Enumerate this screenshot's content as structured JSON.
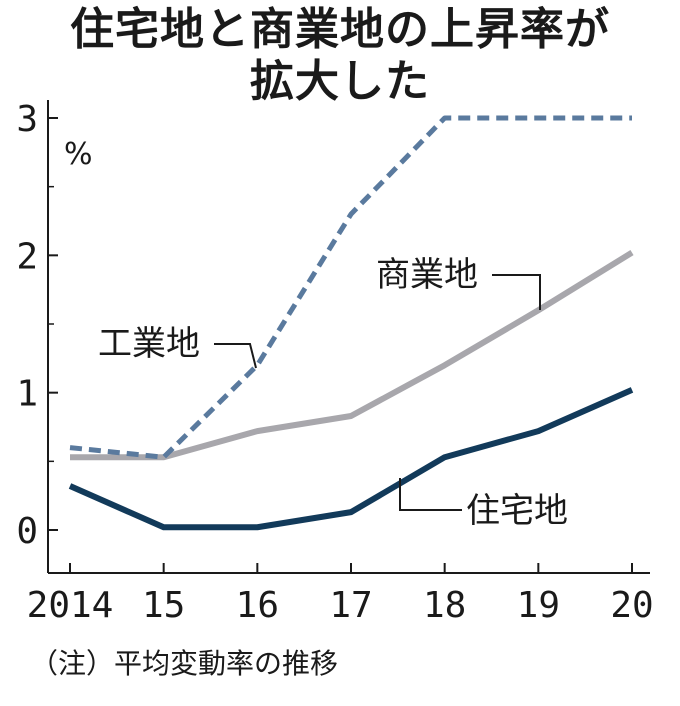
{
  "chart_data": {
    "type": "line",
    "title_lines": [
      "住宅地と商業地の上昇率が",
      "拡大した"
    ],
    "ylabel": "%",
    "x": [
      "2014",
      "15",
      "16",
      "17",
      "18",
      "19",
      "20"
    ],
    "ylim": [
      -0.3,
      3.15
    ],
    "y_ticks": [
      "0",
      "1",
      "2",
      "3"
    ],
    "series": [
      {
        "name": "工業地",
        "style": "dashed",
        "color": "#5a7a9e",
        "values": [
          0.6,
          0.53,
          1.2,
          2.3,
          3.0,
          3.0,
          3.0
        ]
      },
      {
        "name": "商業地",
        "style": "solid",
        "color": "#a8a7ac",
        "values": [
          0.53,
          0.53,
          0.72,
          0.83,
          1.2,
          1.6,
          2.02
        ]
      },
      {
        "name": "住宅地",
        "style": "solid",
        "color": "#123a5a",
        "values": [
          0.32,
          0.02,
          0.02,
          0.13,
          0.53,
          0.72,
          1.02
        ]
      }
    ],
    "note": "（注）平均変動率の推移"
  }
}
